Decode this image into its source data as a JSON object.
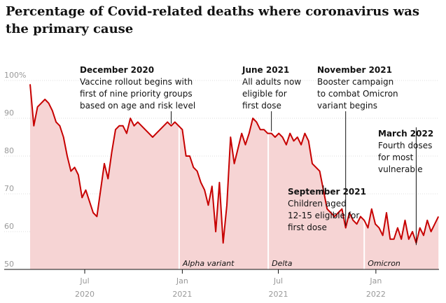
{
  "title": "Percentage of Covid-related deaths where coronavirus was the primary cause",
  "colors": {
    "line": "#c70000",
    "area": "#f6d4d4",
    "grid": "#dcdcdc",
    "axis": "#121212",
    "marker": "#ffffff"
  },
  "chart_data": {
    "type": "area",
    "title": "Percentage of Covid-related deaths where coronavirus was the primary cause",
    "xlabel": "",
    "ylabel": "",
    "ylim": [
      50,
      100
    ],
    "xlim": [
      "2020-03-20",
      "2022-04-30"
    ],
    "grid": true,
    "y_ticks": [
      {
        "value": 100,
        "label": "100%"
      },
      {
        "value": 90,
        "label": "90"
      },
      {
        "value": 80,
        "label": "80"
      },
      {
        "value": 70,
        "label": "70"
      },
      {
        "value": 60,
        "label": "60"
      },
      {
        "value": 50,
        "label": "50"
      }
    ],
    "x_ticks": [
      {
        "date": "2020-07-01",
        "month": "Jul",
        "year": "2020"
      },
      {
        "date": "2021-01-01",
        "month": "Jan",
        "year": "2021"
      },
      {
        "date": "2021-07-01",
        "month": "Jul",
        "year": "2021"
      },
      {
        "date": "2022-01-01",
        "month": "Jan",
        "year": "2022"
      }
    ],
    "series": [
      {
        "x": [
          "2020-03-20",
          "2020-03-27",
          "2020-04-03",
          "2020-04-10",
          "2020-04-17",
          "2020-04-24",
          "2020-05-01",
          "2020-05-08",
          "2020-05-15",
          "2020-05-22",
          "2020-05-29",
          "2020-06-05",
          "2020-06-12",
          "2020-06-19",
          "2020-06-26",
          "2020-07-03",
          "2020-07-10",
          "2020-07-17",
          "2020-07-24",
          "2020-07-31",
          "2020-08-07",
          "2020-08-14",
          "2020-08-21",
          "2020-08-28",
          "2020-09-04",
          "2020-09-11",
          "2020-09-18",
          "2020-09-25",
          "2020-10-02",
          "2020-10-09",
          "2020-10-16",
          "2020-10-23",
          "2020-10-30",
          "2020-11-06",
          "2020-11-13",
          "2020-11-20",
          "2020-11-27",
          "2020-12-04",
          "2020-12-11",
          "2020-12-18",
          "2020-12-25",
          "2021-01-01",
          "2021-01-08",
          "2021-01-15",
          "2021-01-22",
          "2021-01-29",
          "2021-02-05",
          "2021-02-12",
          "2021-02-19",
          "2021-02-26",
          "2021-03-05",
          "2021-03-12",
          "2021-03-19",
          "2021-03-26",
          "2021-04-02",
          "2021-04-09",
          "2021-04-16",
          "2021-04-23",
          "2021-04-30",
          "2021-05-07",
          "2021-05-14",
          "2021-05-21",
          "2021-05-28",
          "2021-06-04",
          "2021-06-11",
          "2021-06-18",
          "2021-06-25",
          "2021-07-02",
          "2021-07-09",
          "2021-07-16",
          "2021-07-23",
          "2021-07-30",
          "2021-08-06",
          "2021-08-13",
          "2021-08-20",
          "2021-08-27",
          "2021-09-03",
          "2021-09-10",
          "2021-09-17",
          "2021-09-24",
          "2021-10-01",
          "2021-10-08",
          "2021-10-15",
          "2021-10-22",
          "2021-10-29",
          "2021-11-05",
          "2021-11-12",
          "2021-11-19",
          "2021-11-26",
          "2021-12-03",
          "2021-12-10",
          "2021-12-17",
          "2021-12-24",
          "2021-12-31",
          "2022-01-07",
          "2022-01-14",
          "2022-01-21",
          "2022-01-28",
          "2022-02-04",
          "2022-02-11",
          "2022-02-18",
          "2022-02-25",
          "2022-03-04",
          "2022-03-11",
          "2022-03-18",
          "2022-03-25",
          "2022-04-01",
          "2022-04-08",
          "2022-04-15",
          "2022-04-22",
          "2022-04-29"
        ],
        "values": [
          99,
          88,
          93,
          94,
          95,
          94,
          92,
          89,
          88,
          85,
          80,
          76,
          77,
          75,
          69,
          71,
          68,
          65,
          64,
          71,
          78,
          74,
          81,
          87,
          88,
          88,
          86,
          90,
          88,
          89,
          88,
          87,
          86,
          85,
          86,
          87,
          88,
          89,
          88,
          89,
          88,
          87,
          80,
          80,
          77,
          76,
          73,
          71,
          67,
          72,
          60,
          73,
          57,
          67,
          85,
          78,
          82,
          86,
          83,
          86,
          90,
          89,
          87,
          87,
          86,
          86,
          85,
          86,
          85,
          83,
          86,
          84,
          85,
          83,
          86,
          84,
          78,
          77,
          76,
          71,
          66,
          65,
          64,
          65,
          66,
          61,
          65,
          63,
          62,
          64,
          63,
          61,
          66,
          62,
          61,
          59,
          65,
          58,
          58,
          61,
          58,
          63,
          58,
          60,
          57,
          61,
          59,
          63,
          60,
          62,
          64
        ]
      }
    ],
    "annotations": [
      {
        "date": "2020-12-11",
        "heading": "December 2020",
        "lines": [
          "Vaccine rollout begins with",
          "first of nine priority groups",
          "based on age and risk level"
        ]
      },
      {
        "date": "2021-06-18",
        "heading": "June 2021",
        "lines": [
          "All adults now",
          "eligible for",
          "first dose"
        ]
      },
      {
        "date": "2021-11-05",
        "heading": "November 2021",
        "lines": [
          "Booster campaign",
          "to combat Omicron",
          "variant begins"
        ]
      },
      {
        "date": "2021-09-24",
        "heading": "September 2021",
        "lines": [
          "Children aged",
          "12-15 eligible for",
          "first dose"
        ]
      },
      {
        "date": "2022-03-18",
        "heading": "March 2022",
        "lines": [
          "Fourth doses",
          "for most",
          "vulnerable"
        ]
      }
    ],
    "variant_markers": [
      {
        "date": "2020-12-26",
        "label": "Alpha variant"
      },
      {
        "date": "2021-06-12",
        "label": "Delta"
      },
      {
        "date": "2021-12-10",
        "label": "Omicron"
      }
    ]
  }
}
